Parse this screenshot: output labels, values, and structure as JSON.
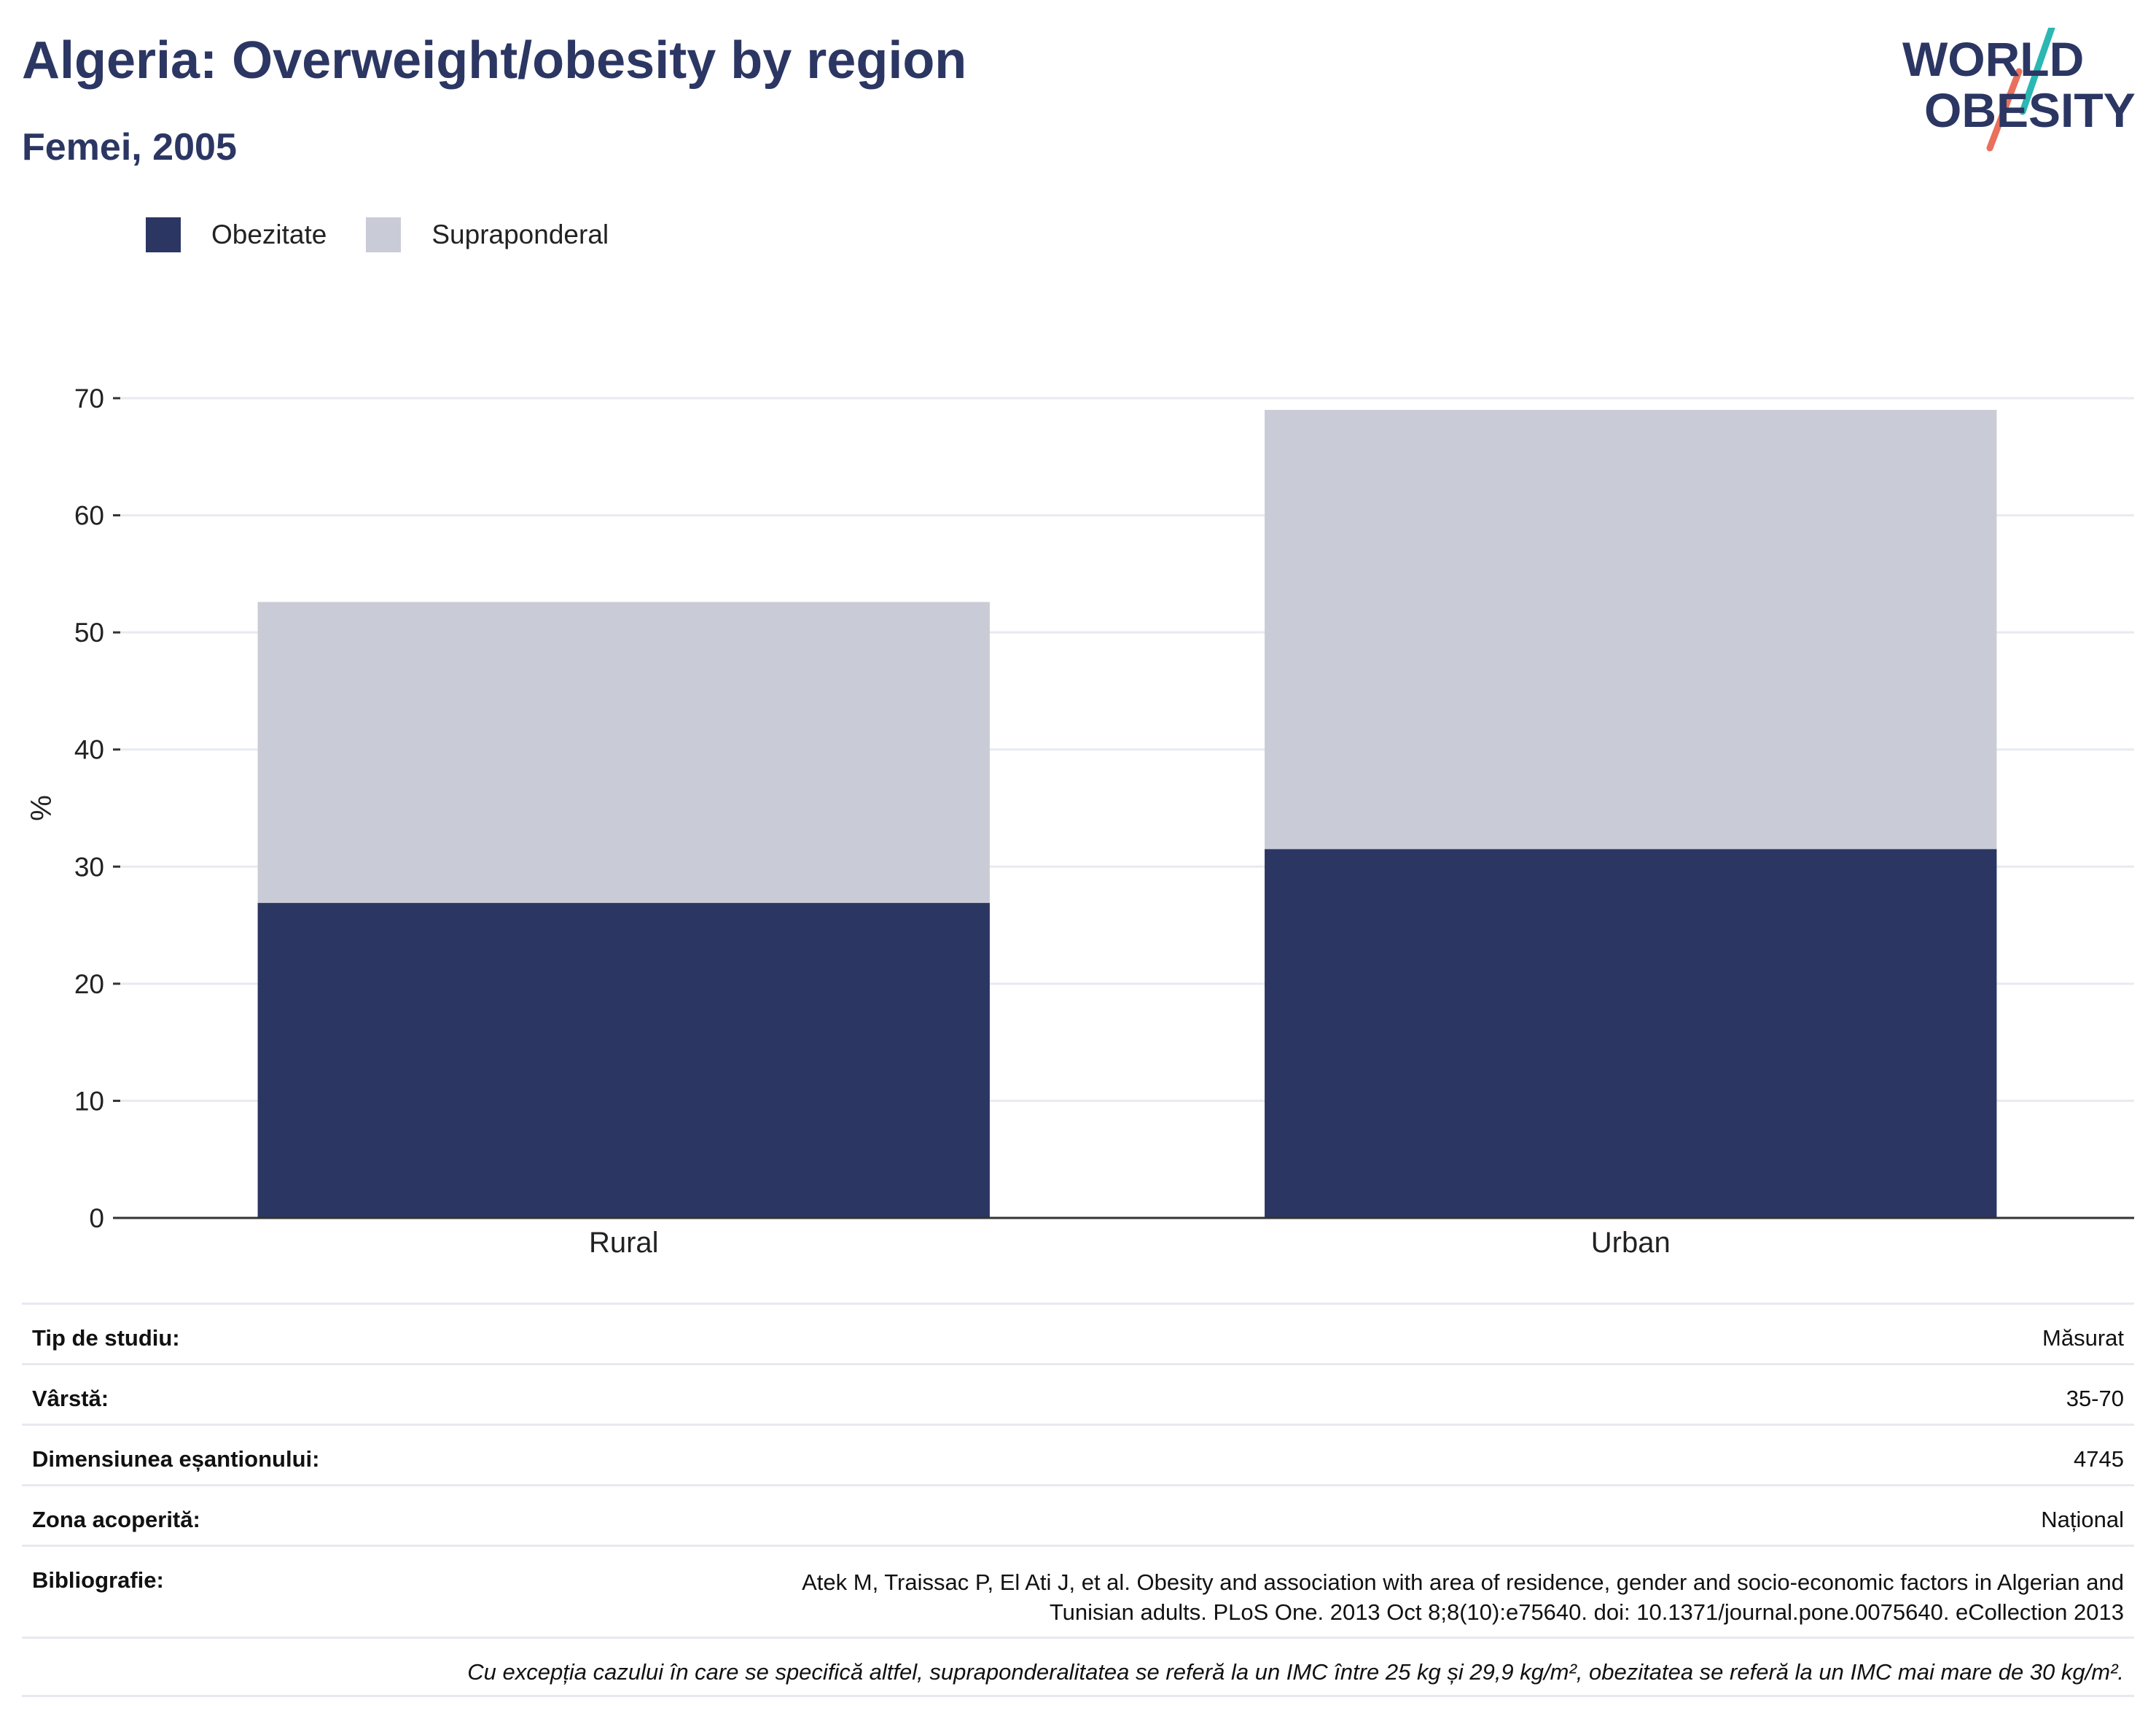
{
  "header": {
    "title": "Algeria: Overweight/obesity by region",
    "subtitle": "Femei, 2005"
  },
  "logo": {
    "line1": "WORLD",
    "line2": "OBESITY"
  },
  "colors": {
    "obesity": "#2b3663",
    "overweight": "#c9ccd7",
    "accent_teal": "#2bb7b3",
    "accent_coral": "#e8705d"
  },
  "chart_data": {
    "type": "bar",
    "stacked": true,
    "categories": [
      "Rural",
      "Urban"
    ],
    "series": [
      {
        "name": "Obezitate",
        "values": [
          26.9,
          31.5
        ],
        "color": "#2b3663"
      },
      {
        "name": "Supraponderal",
        "values": [
          25.7,
          37.5
        ],
        "color": "#c9ccd7"
      }
    ],
    "ylabel": "%",
    "xlabel": "",
    "ylim": [
      0,
      70
    ],
    "yticks": [
      0,
      10,
      20,
      30,
      40,
      50,
      60,
      70
    ],
    "grid": true,
    "legend_position": "top-left"
  },
  "info": {
    "rows": [
      {
        "label": "Tip de studiu:",
        "value": "Măsurat"
      },
      {
        "label": "Vârstă:",
        "value": "35-70"
      },
      {
        "label": "Dimensiunea eșantionului:",
        "value": "4745"
      },
      {
        "label": "Zona acoperită:",
        "value": "Național"
      },
      {
        "label": "Bibliografie:",
        "value_line1": "Atek M, Traissac P, El Ati J, et al. Obesity and association with area of residence, gender and socio-economic factors in Algerian and",
        "value_line2": "Tunisian adults. PLoS One. 2013 Oct 8;8(10):e75640. doi: 10.1371/journal.pone.0075640. eCollection 2013"
      }
    ],
    "note": "Cu excepția cazului în care se specifică altfel, supraponderalitatea se referă la un IMC între 25 kg și 29,9 kg/m², obezitatea se referă la un IMC mai mare de 30 kg/m²."
  }
}
